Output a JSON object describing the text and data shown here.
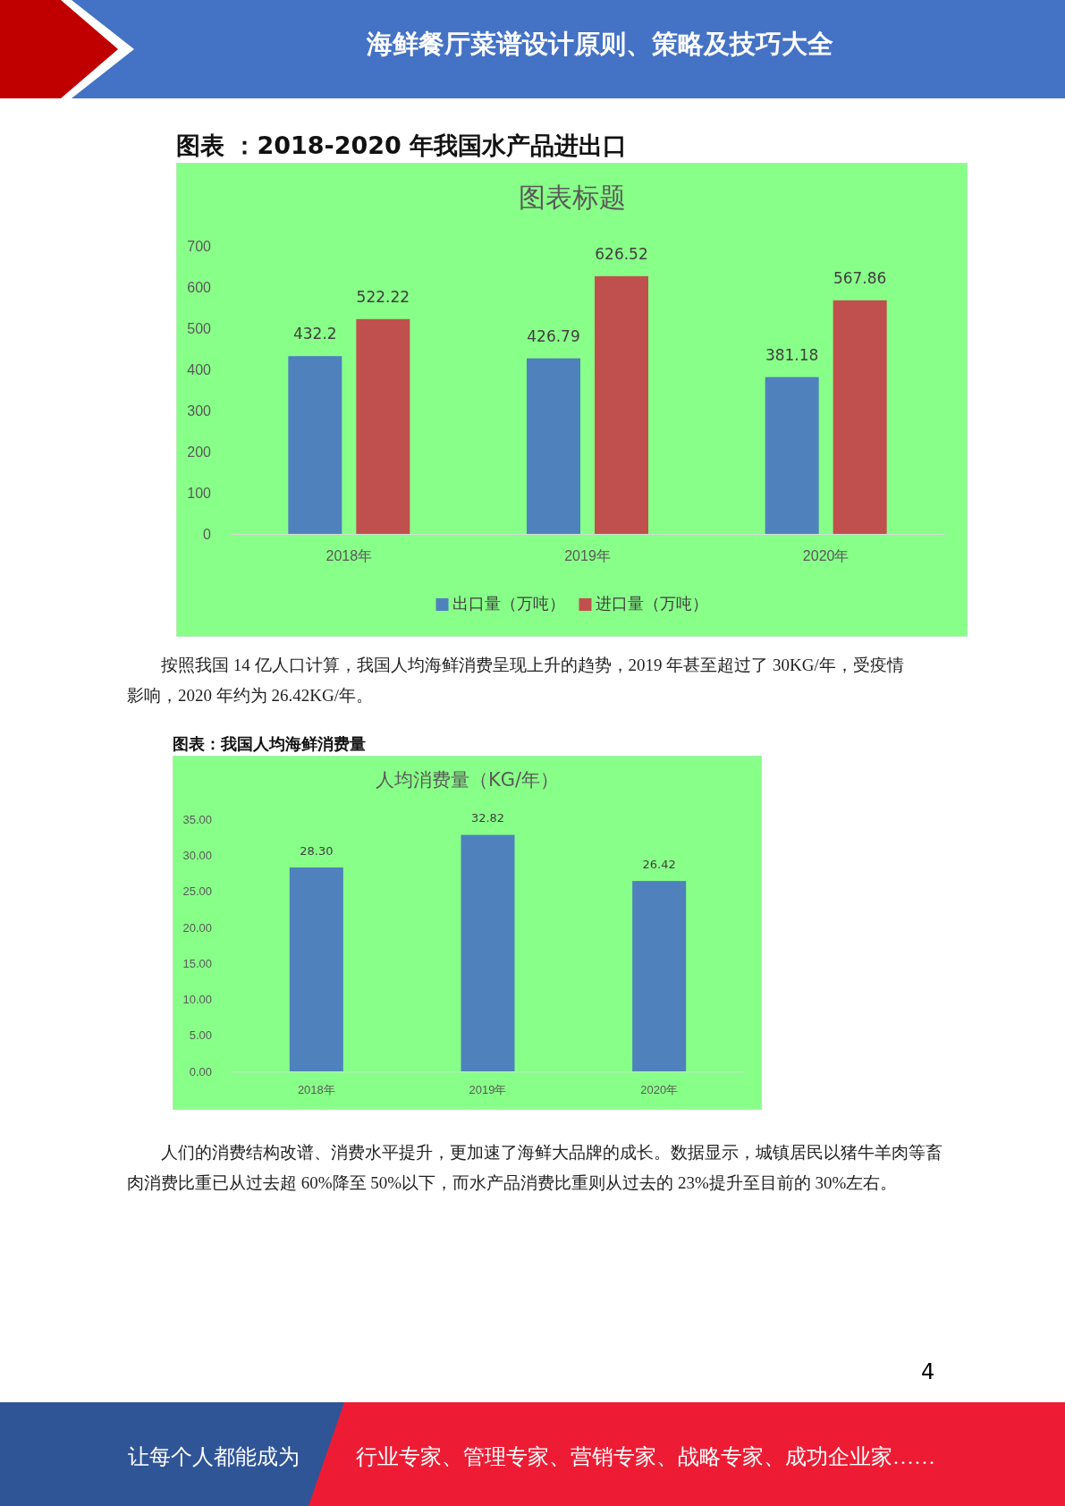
{
  "chart_data": [
    {
      "type": "bar",
      "title": "图表 ：2018-2020 年我国水产品进出口",
      "subtitle": "图表标题",
      "categories": [
        "2018年",
        "2019年",
        "2020年"
      ],
      "series": [
        {
          "name": "出口量（万吨）",
          "color": "#4f81bd",
          "values": [
            432.2,
            426.79,
            381.18
          ]
        },
        {
          "name": "进口量（万吨）",
          "color": "#c0504d",
          "values": [
            522.22,
            626.52,
            567.86
          ]
        }
      ],
      "ylim": [
        0,
        700
      ],
      "yticks": [
        0,
        100,
        200,
        300,
        400,
        500,
        600,
        700
      ],
      "data_labels": true,
      "legend": "bottom",
      "annotations": [
        "海鲜餐厅菜谱设计原则、策略及技巧大全",
        "按照我国 14 亿人口计算，我国人均海鲜消费呈现上升的趋势，2019 年甚至超过了 30KG/年，受疫情影响，2020 年约为 26.42KG/年。"
      ]
    },
    {
      "type": "bar",
      "title": "图表：我国人均海鲜消费量",
      "subtitle": "人均消费量（KG/年）",
      "categories": [
        "2018年",
        "2019年",
        "2020年"
      ],
      "series": [
        {
          "color": "#4f81bd",
          "values": [
            28.3,
            32.82,
            26.42
          ],
          "value_labels": [
            "28.30",
            "32.82",
            "26.42"
          ]
        }
      ],
      "ylim": [
        0,
        35
      ],
      "yticks": [
        {
          "value": 0,
          "label": "0.00"
        },
        {
          "value": 5,
          "label": "5.00"
        },
        {
          "value": 10,
          "label": "10.00"
        },
        {
          "value": 15,
          "label": "15.00"
        },
        {
          "value": 20,
          "label": "20.00"
        },
        {
          "value": 25,
          "label": "25.00"
        },
        {
          "value": 30,
          "label": "30.00"
        },
        {
          "value": 35,
          "label": "35.00"
        }
      ],
      "annotations": [
        "人们的消费结构改谱、消费水平提升，更加速了海鲜大品牌的成长。数据显示，城镇居民以猪牛羊肉等畜肉消费比重已从过去超 60%降至 50%以下，而水产品消费比重则从过去的 23%提升至目前的 30%左右。",
        "4",
        "让每个人都能成为",
        "行业专家、管理专家、营销专家、战略专家、成功企业家……"
      ]
    }
  ]
}
